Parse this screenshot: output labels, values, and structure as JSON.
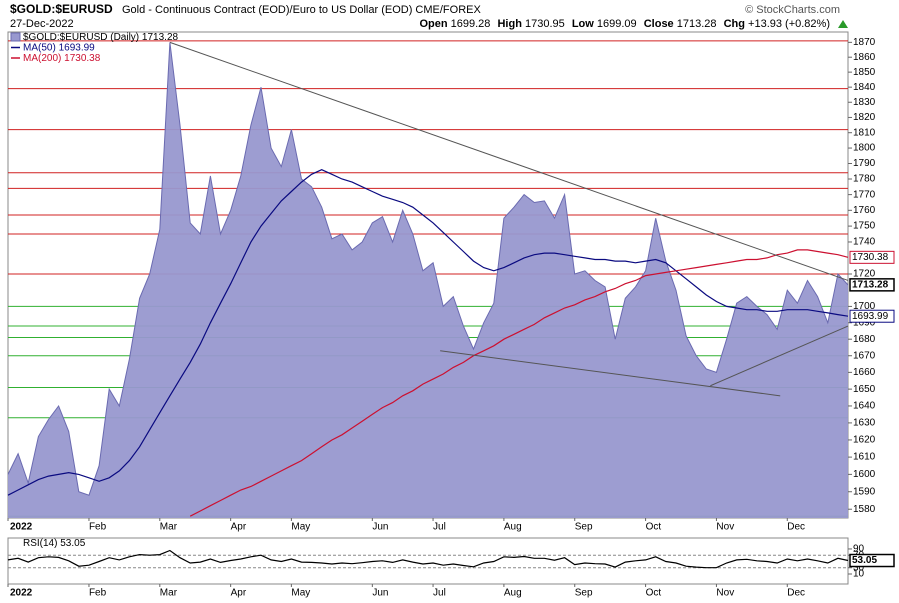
{
  "header": {
    "symbol": "$GOLD:$EURUSD",
    "description": "Gold - Continuous Contract (EOD)/Euro to US Dollar (EOD) CME/FOREX",
    "source": "© StockCharts.com",
    "date": "27-Dec-2022",
    "quote": [
      {
        "name": "Open",
        "value": 1699.28
      },
      {
        "name": "High",
        "value": 1730.95
      },
      {
        "name": "Low",
        "value": 1699.09
      },
      {
        "name": "Close",
        "value": 1713.28
      },
      {
        "name": "Chg",
        "value": 13.93,
        "label": "+13.93",
        "pct": 0.82,
        "pct_label": "(+0.82%)"
      }
    ]
  },
  "chart_data": [
    {
      "type": "area",
      "log": true,
      "grid": false,
      "categories": [
        "2022",
        null,
        null,
        null,
        null,
        null,
        null,
        null,
        "Feb",
        null,
        null,
        null,
        null,
        null,
        null,
        "Mar",
        null,
        null,
        null,
        null,
        null,
        null,
        "Apr",
        null,
        null,
        null,
        null,
        null,
        "May",
        null,
        null,
        null,
        null,
        null,
        null,
        null,
        "Jun",
        null,
        null,
        null,
        null,
        null,
        "Jul",
        null,
        null,
        null,
        null,
        null,
        null,
        "Aug",
        null,
        null,
        null,
        null,
        null,
        null,
        "Sep",
        null,
        null,
        null,
        null,
        null,
        null,
        "Oct",
        null,
        null,
        null,
        null,
        null,
        null,
        "Nov",
        null,
        null,
        null,
        null,
        null,
        null,
        "Dec",
        null,
        null,
        null,
        null,
        null,
        null
      ],
      "ylim": [
        1575,
        1877
      ],
      "yticks": [
        1580,
        1590,
        1600,
        1610,
        1620,
        1630,
        1640,
        1650,
        1660,
        1670,
        1680,
        1690,
        1700,
        1720,
        1740,
        1750,
        1760,
        1770,
        1780,
        1790,
        1800,
        1810,
        1820,
        1830,
        1840,
        1850,
        1860,
        1870
      ],
      "series": [
        {
          "name": "$GOLD:$EURUSD (Daily)",
          "style": "area",
          "color": "#6a6ab0",
          "fill": "#9898cf",
          "values": [
            1600,
            1612,
            1595,
            1622,
            1632,
            1640,
            1625,
            1590,
            1588,
            1605,
            1650,
            1640,
            1668,
            1705,
            1720,
            1748,
            1870,
            1815,
            1752,
            1745,
            1782,
            1745,
            1760,
            1782,
            1815,
            1840,
            1800,
            1788,
            1812,
            1780,
            1775,
            1762,
            1742,
            1745,
            1735,
            1740,
            1752,
            1756,
            1740,
            1760,
            1745,
            1722,
            1727,
            1700,
            1706,
            1688,
            1674,
            1690,
            1702,
            1755,
            1762,
            1770,
            1765,
            1766,
            1755,
            1770,
            1720,
            1722,
            1716,
            1712,
            1680,
            1705,
            1712,
            1722,
            1755,
            1728,
            1710,
            1682,
            1670,
            1662,
            1660,
            1680,
            1702,
            1706,
            1700,
            1695,
            1686,
            1710,
            1702,
            1716,
            1706,
            1690,
            1720,
            1713.28
          ]
        },
        {
          "name": "MA(50)",
          "style": "line",
          "color": "#0a0a80",
          "values": [
            1588,
            1591,
            1594,
            1597,
            1599,
            1600,
            1601,
            1600,
            1598,
            1596,
            1598,
            1602,
            1608,
            1616,
            1626,
            1636,
            1646,
            1656,
            1666,
            1677,
            1690,
            1702,
            1714,
            1727,
            1740,
            1750,
            1758,
            1766,
            1772,
            1778,
            1783,
            1786,
            1783,
            1780,
            1778,
            1775,
            1772,
            1769,
            1767,
            1765,
            1762,
            1757,
            1752,
            1746,
            1740,
            1734,
            1728,
            1724,
            1722,
            1724,
            1727,
            1730,
            1732,
            1733,
            1733,
            1732,
            1731,
            1730,
            1729,
            1729,
            1728,
            1728,
            1727,
            1728,
            1729,
            1727,
            1722,
            1717,
            1712,
            1707,
            1703,
            1700,
            1699,
            1698,
            1698,
            1697,
            1697,
            1698,
            1698,
            1698,
            1697,
            1696,
            1695,
            1693.99
          ]
        },
        {
          "name": "MA(200)",
          "style": "line",
          "color": "#cc1030",
          "values": [
            null,
            null,
            null,
            null,
            null,
            null,
            null,
            null,
            null,
            null,
            null,
            null,
            null,
            null,
            null,
            null,
            null,
            null,
            1576,
            1579,
            1582,
            1585,
            1588,
            1591,
            1593,
            1596,
            1599,
            1602,
            1605,
            1608,
            1612,
            1616,
            1620,
            1623,
            1627,
            1631,
            1635,
            1639,
            1642,
            1646,
            1649,
            1653,
            1656,
            1659,
            1663,
            1666,
            1670,
            1673,
            1676,
            1680,
            1683,
            1686,
            1689,
            1693,
            1696,
            1699,
            1701,
            1704,
            1706,
            1709,
            1711,
            1714,
            1716,
            1719,
            1720,
            1721,
            1722,
            1723,
            1724,
            1725,
            1726,
            1727,
            1728,
            1729,
            1729,
            1730,
            1732,
            1733,
            1735,
            1735,
            1734,
            1733,
            1732,
            1730.38
          ]
        }
      ],
      "hlines": [
        {
          "value": 1871,
          "color": "#d02020"
        },
        {
          "value": 1839,
          "color": "#d02020"
        },
        {
          "value": 1812,
          "color": "#d02020"
        },
        {
          "value": 1784,
          "color": "#d02020"
        },
        {
          "value": 1774,
          "color": "#d02020"
        },
        {
          "value": 1757,
          "color": "#d02020"
        },
        {
          "value": 1745,
          "color": "#d02020"
        },
        {
          "value": 1720,
          "color": "#d02020"
        },
        {
          "value": 1700,
          "color": "#30b030"
        },
        {
          "value": 1688,
          "color": "#30b030"
        },
        {
          "value": 1681,
          "color": "#30b030"
        },
        {
          "value": 1670,
          "color": "#30b030"
        },
        {
          "value": 1651,
          "color": "#30b030"
        },
        {
          "value": 1633,
          "color": "#30b030"
        },
        {
          "value": 1576,
          "color": "#30b030"
        }
      ],
      "trendlines": [
        {
          "x": [
            16,
            83
          ],
          "y": [
            1870,
            1716
          ],
          "color": "#555555"
        },
        {
          "x": [
            42.7,
            76.3
          ],
          "y": [
            1673,
            1646
          ],
          "color": "#555555"
        },
        {
          "x": [
            69.4,
            83
          ],
          "y": [
            1652,
            1688
          ],
          "color": "#555555"
        }
      ]
    },
    {
      "type": "line",
      "ylim": [
        -22,
        125
      ],
      "yticks": [
        10,
        30,
        70,
        90
      ],
      "series": [
        {
          "name": "RSI(14)",
          "color": "#000000",
          "values": [
            55,
            60,
            48,
            62,
            65,
            63,
            52,
            35,
            38,
            50,
            62,
            55,
            65,
            72,
            70,
            72,
            85,
            62,
            45,
            48,
            58,
            47,
            53,
            58,
            65,
            70,
            55,
            50,
            58,
            48,
            47,
            45,
            42,
            45,
            43,
            46,
            50,
            52,
            47,
            55,
            48,
            42,
            45,
            38,
            42,
            37,
            33,
            45,
            50,
            65,
            63,
            66,
            60,
            60,
            54,
            62,
            40,
            45,
            43,
            42,
            32,
            48,
            52,
            55,
            65,
            50,
            45,
            35,
            32,
            30,
            30,
            45,
            55,
            57,
            52,
            50,
            45,
            58,
            52,
            58,
            52,
            45,
            60,
            53.05
          ]
        }
      ],
      "hlines": [
        {
          "value": 70,
          "color": "#888888"
        },
        {
          "value": 30,
          "color": "#888888"
        }
      ]
    }
  ]
}
